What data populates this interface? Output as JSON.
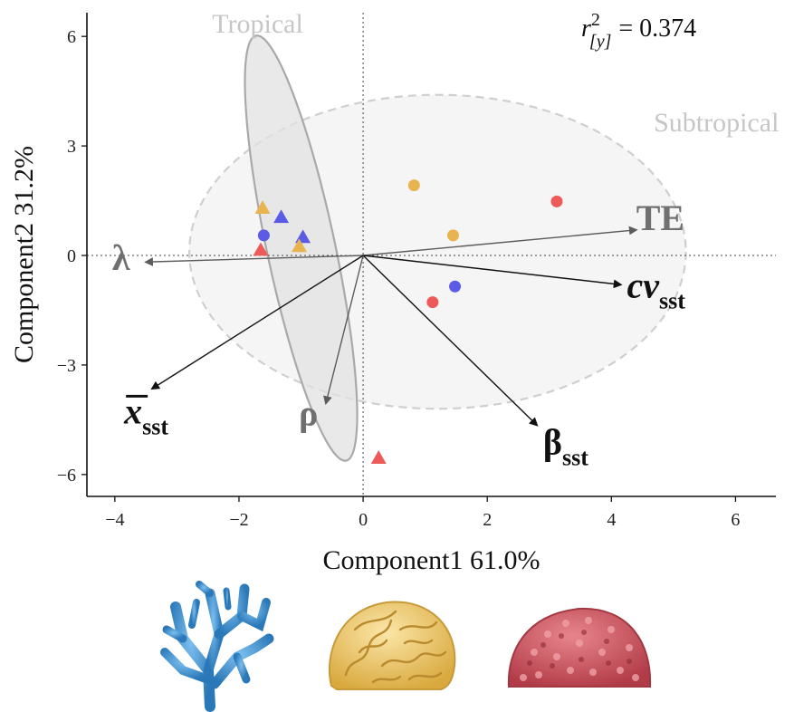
{
  "chart_data": {
    "type": "scatter",
    "title": "",
    "xlabel": "Component1 61.0%",
    "ylabel": "Component2 31.2%",
    "xlim": [
      -4.45,
      6.65
    ],
    "ylim": [
      -6.6,
      6.65
    ],
    "xticks": [
      -4,
      -2,
      0,
      2,
      4,
      6
    ],
    "yticks": [
      -6,
      -3,
      0,
      3,
      6
    ],
    "xtick_labels": [
      "−4",
      "−2",
      "0",
      "2",
      "4",
      "6"
    ],
    "ytick_labels": [
      "−6",
      "−3",
      "0",
      "3",
      "6"
    ],
    "grid": false,
    "reference_lines": {
      "x": 0,
      "y": 0,
      "style": "dotted"
    },
    "annotation": {
      "lhs_base": "r",
      "lhs_sup": "2",
      "lhs_sub": "[y]",
      "rhs": "= 0.374"
    },
    "groups": [
      {
        "name": "Tropical",
        "center": [
          -1.0,
          0.2
        ],
        "semi_axes": [
          0.55,
          5.95
        ],
        "angle_deg": 12,
        "fill": "#e1e1e1",
        "stroke": "#a9a9a9",
        "dashed": false,
        "label_at": [
          -1.7,
          6.1
        ]
      },
      {
        "name": "Subtropical",
        "center": [
          1.2,
          0.1
        ],
        "semi_axes": [
          4.0,
          4.3
        ],
        "angle_deg": 0,
        "fill": "#f2f2f2",
        "stroke": "#cfcfcf",
        "dashed": true,
        "label_at": [
          6.7,
          3.4
        ]
      }
    ],
    "points": [
      {
        "x": -1.62,
        "y": 1.3,
        "shape": "triangle",
        "color": "#e8b450"
      },
      {
        "x": -1.32,
        "y": 1.05,
        "shape": "triangle",
        "color": "#5b5be6"
      },
      {
        "x": -1.6,
        "y": 0.55,
        "shape": "circle",
        "color": "#5b5be6"
      },
      {
        "x": -1.65,
        "y": 0.15,
        "shape": "triangle",
        "color": "#ee5a5a"
      },
      {
        "x": -0.97,
        "y": 0.5,
        "shape": "triangle",
        "color": "#5b5be6"
      },
      {
        "x": -1.03,
        "y": 0.25,
        "shape": "triangle",
        "color": "#e8b450"
      },
      {
        "x": 0.82,
        "y": 1.92,
        "shape": "circle",
        "color": "#e8b450"
      },
      {
        "x": 1.45,
        "y": 0.55,
        "shape": "circle",
        "color": "#e8b450"
      },
      {
        "x": 3.12,
        "y": 1.48,
        "shape": "circle",
        "color": "#ee5a5a"
      },
      {
        "x": 1.48,
        "y": -0.85,
        "shape": "circle",
        "color": "#5b5be6"
      },
      {
        "x": 1.12,
        "y": -1.28,
        "shape": "circle",
        "color": "#ee5a5a"
      },
      {
        "x": 0.25,
        "y": -5.55,
        "shape": "triangle",
        "color": "#ee5a5a"
      }
    ],
    "loadings": [
      {
        "label": "TE",
        "sub": "",
        "x": 4.4,
        "y": 0.7,
        "color": "#5c5c5c",
        "text_color": "#707070",
        "label_at": [
          4.4,
          0.7
        ],
        "anchor": "start",
        "bar": false
      },
      {
        "label": "λ",
        "sub": "",
        "x": -3.5,
        "y": -0.18,
        "color": "#5c5c5c",
        "text_color": "#707070",
        "label_at": [
          -3.9,
          -0.4
        ],
        "anchor": "middle",
        "bar": false
      },
      {
        "label": "cv",
        "sub": "sst",
        "x": 4.15,
        "y": -0.8,
        "color": "#111111",
        "text_color": "#111111",
        "label_at": [
          4.25,
          -1.15
        ],
        "anchor": "start",
        "bar": false
      },
      {
        "label": "β",
        "sub": "sst",
        "x": 2.8,
        "y": -4.65,
        "color": "#111111",
        "text_color": "#111111",
        "label_at": [
          2.9,
          -5.45
        ],
        "anchor": "start",
        "bar": false
      },
      {
        "label": "ρ",
        "sub": "",
        "x": -0.6,
        "y": -4.05,
        "color": "#5c5c5c",
        "text_color": "#707070",
        "label_at": [
          -0.88,
          -4.65
        ],
        "anchor": "middle",
        "bar": false
      },
      {
        "label": "x",
        "sub": "sst",
        "x": -3.4,
        "y": -3.65,
        "color": "#111111",
        "text_color": "#111111",
        "label_at": [
          -3.85,
          -4.6
        ],
        "anchor": "start",
        "bar": true
      }
    ],
    "footer_images": [
      {
        "name": "staghorn-coral",
        "color": "#3a8ccf"
      },
      {
        "name": "brain-coral",
        "color": "#e8c260"
      },
      {
        "name": "red-coral",
        "color": "#c9505a"
      }
    ]
  }
}
